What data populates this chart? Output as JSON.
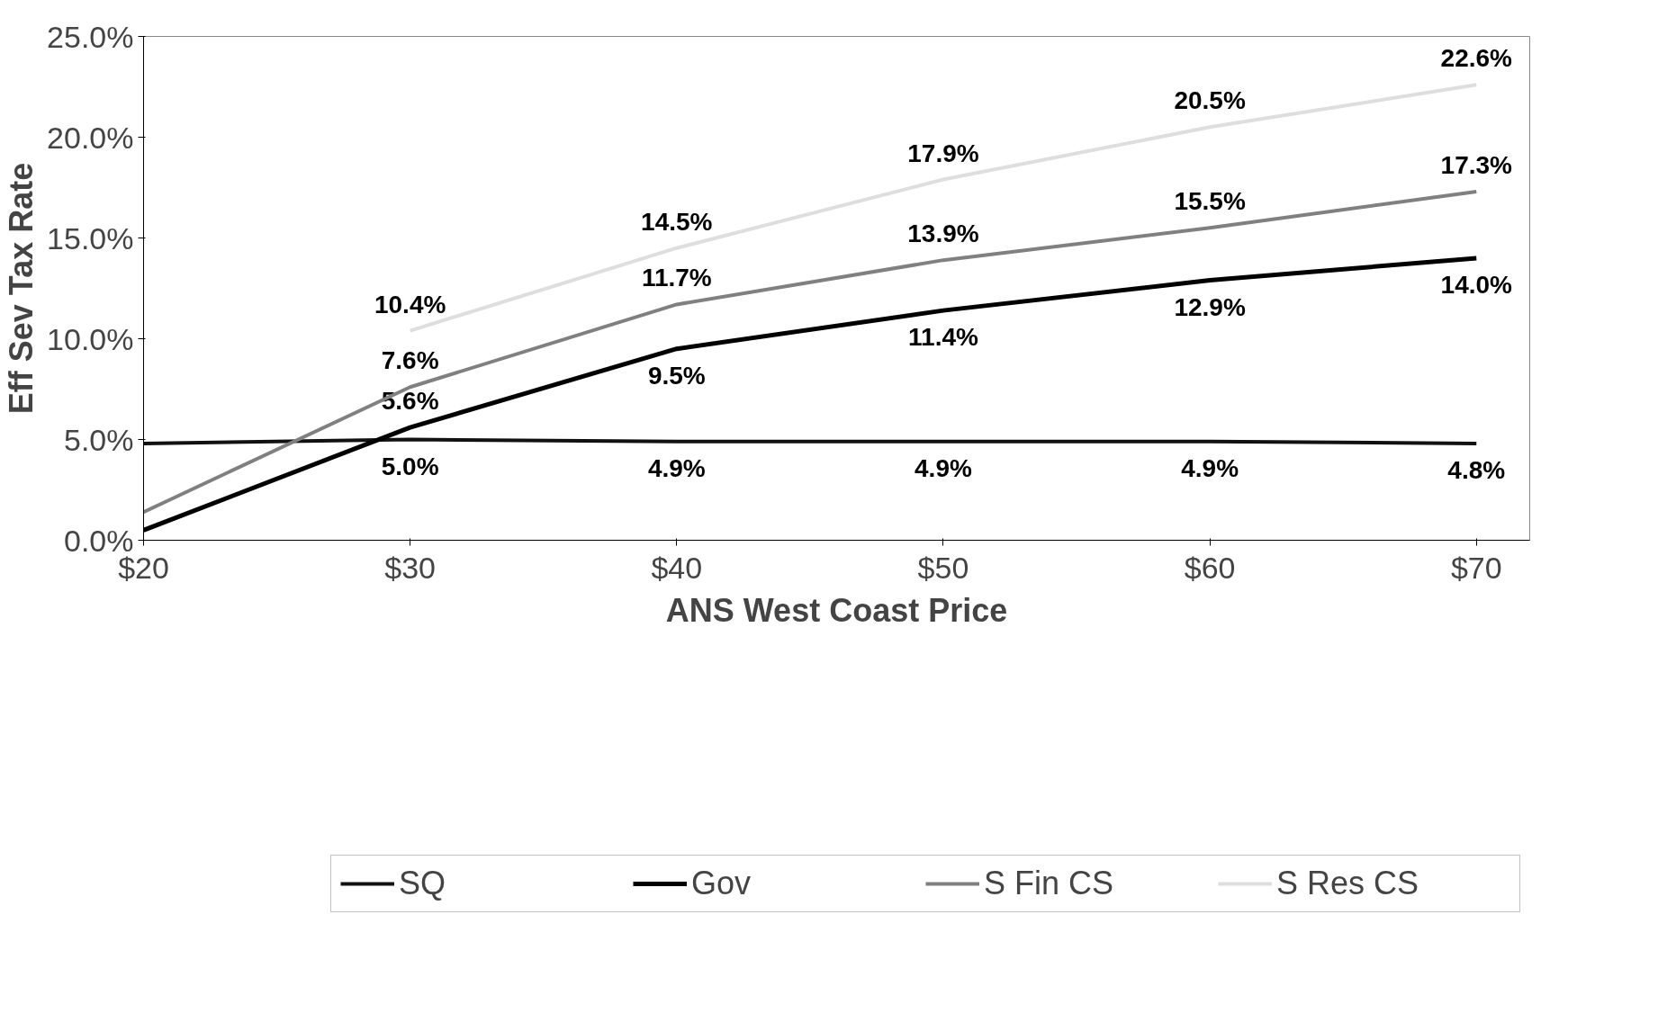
{
  "chart_data": {
    "type": "line",
    "xlabel": "ANS West Coast Price",
    "ylabel": "Eff Sev Tax Rate",
    "x": [
      20,
      30,
      40,
      50,
      60,
      70
    ],
    "series": [
      {
        "name": "SQ",
        "color": "#111111",
        "values": [
          4.8,
          5.0,
          4.9,
          4.9,
          4.9,
          4.8
        ],
        "value_labels": [
          null,
          "5.0%",
          "4.9%",
          "4.9%",
          "4.9%",
          "4.8%"
        ]
      },
      {
        "name": "Gov",
        "color": "#000000",
        "values": [
          0.5,
          5.6,
          9.5,
          11.4,
          12.9,
          14.0
        ],
        "value_labels": [
          null,
          "5.6%",
          "9.5%",
          "11.4%",
          "12.9%",
          "14.0%"
        ]
      },
      {
        "name": "S Fin CS",
        "color": "#808080",
        "values": [
          1.4,
          7.6,
          11.7,
          13.9,
          15.5,
          17.3
        ],
        "value_labels": [
          null,
          "7.6%",
          "11.7%",
          "13.9%",
          "15.5%",
          "17.3%"
        ]
      },
      {
        "name": "S Res CS",
        "color": "#dedede",
        "values": [
          null,
          10.4,
          14.5,
          17.9,
          20.5,
          22.6
        ],
        "value_labels": [
          null,
          "10.4%",
          "14.5%",
          "17.9%",
          "20.5%",
          "22.6%"
        ]
      }
    ],
    "xlim": [
      20,
      72
    ],
    "xticks": [
      {
        "value": 20,
        "label": "$20"
      },
      {
        "value": 30,
        "label": "$30"
      },
      {
        "value": 40,
        "label": "$40"
      },
      {
        "value": 50,
        "label": "$50"
      },
      {
        "value": 60,
        "label": "$60"
      },
      {
        "value": 70,
        "label": "$70"
      }
    ],
    "ylim": [
      0,
      25
    ],
    "yticks": [
      {
        "value": 0,
        "label": "0.0%"
      },
      {
        "value": 5,
        "label": "5.0%"
      },
      {
        "value": 10,
        "label": "10.0%"
      },
      {
        "value": 15,
        "label": "15.0%"
      },
      {
        "value": 20,
        "label": "20.0%"
      },
      {
        "value": 25,
        "label": "25.0%"
      }
    ],
    "legend": "bottom",
    "grid": false,
    "marker": "none",
    "line_style": "solid"
  }
}
